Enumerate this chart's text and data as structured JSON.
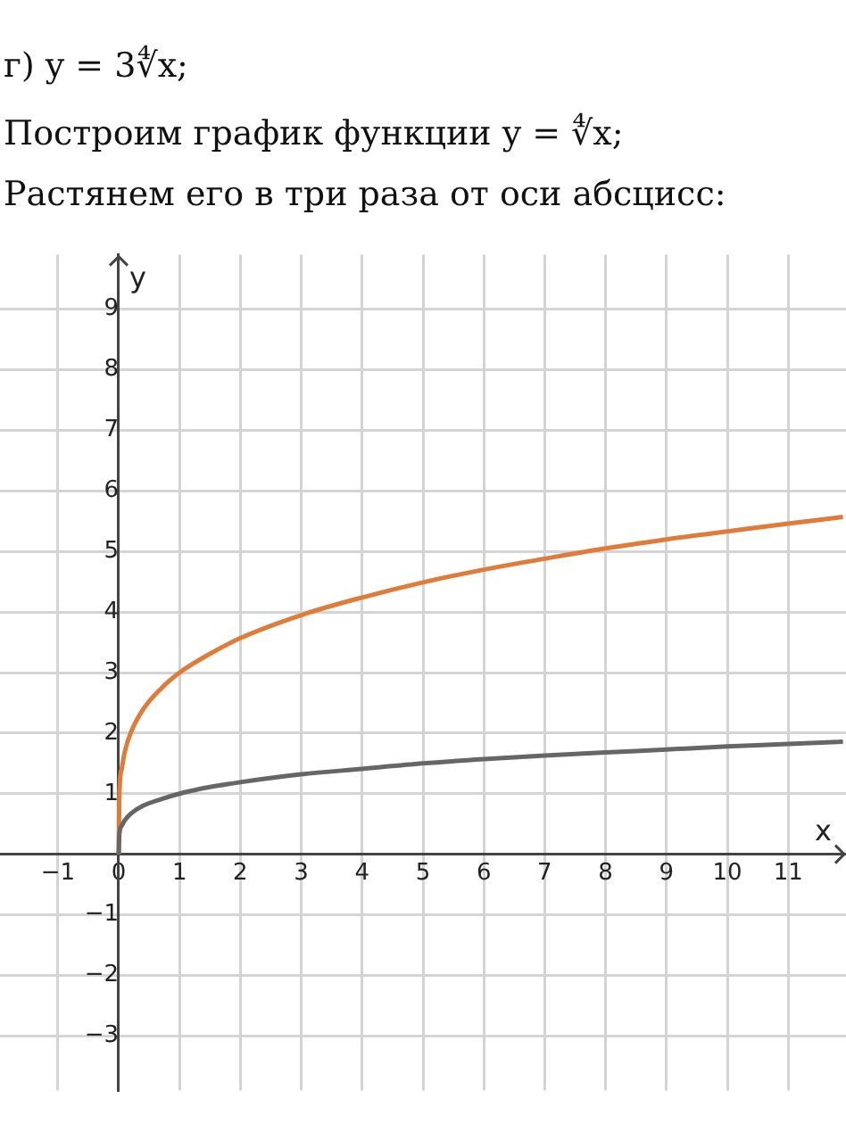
{
  "chart_data": {
    "type": "line",
    "title": "г) y = 3∜x;",
    "annotations": [
      "Построим график функции y = ∜x;",
      "Растянем его в три раза от оси абсцисс:"
    ],
    "xlabel": "x",
    "ylabel": "y",
    "x": [
      0,
      0.01,
      0.05,
      0.1,
      0.2,
      0.4,
      0.7,
      1,
      1.5,
      2,
      3,
      4,
      5,
      6,
      7,
      8,
      9,
      10,
      11,
      11.9
    ],
    "series": [
      {
        "color": "#666666",
        "values": [
          0,
          0.32,
          0.47,
          0.56,
          0.67,
          0.8,
          0.91,
          1,
          1.11,
          1.19,
          1.32,
          1.41,
          1.5,
          1.57,
          1.63,
          1.68,
          1.73,
          1.78,
          1.82,
          1.86
        ]
      },
      {
        "color": "#e07b39",
        "values": [
          0,
          0.95,
          1.41,
          1.69,
          2.01,
          2.39,
          2.74,
          3,
          3.31,
          3.57,
          3.95,
          4.24,
          4.49,
          4.7,
          4.88,
          5.05,
          5.2,
          5.33,
          5.46,
          5.57
        ]
      }
    ],
    "xlim": [
      -1.95,
      11.95
    ],
    "ylim": [
      -3.9,
      9.9
    ],
    "xticks": [
      -1,
      0,
      1,
      2,
      3,
      4,
      5,
      6,
      7,
      8,
      9,
      10,
      11
    ],
    "yticks": [
      -3,
      -2,
      -1,
      {
        "value": 0,
        "label": null
      },
      1,
      2,
      3,
      4,
      5,
      6,
      7,
      8,
      9
    ],
    "grid": true,
    "legend": false,
    "marker": "none",
    "line_style": "solid"
  }
}
